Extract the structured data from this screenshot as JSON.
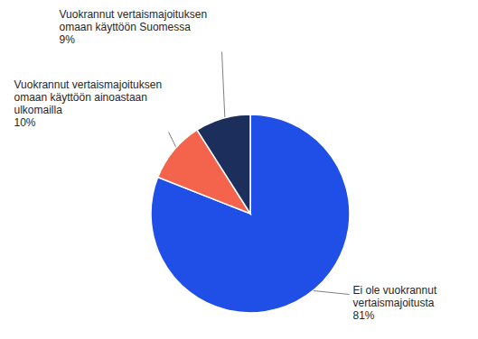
{
  "chart_data": {
    "type": "pie",
    "categories": [
      "Ei ole vuokrannut vertaismajoitusta",
      "Vuokrannut vertaismajoituksen omaan käyttöön ainoastaan ulkomailla",
      "Vuokrannut vertaismajoituksen omaan käyttöön Suomessa"
    ],
    "values": [
      81,
      10,
      9
    ],
    "value_labels": [
      "81%",
      "10%",
      "9%"
    ],
    "colors": [
      "#1f4fe6",
      "#f4634c",
      "#1c2e5c"
    ],
    "data_labels": true
  }
}
